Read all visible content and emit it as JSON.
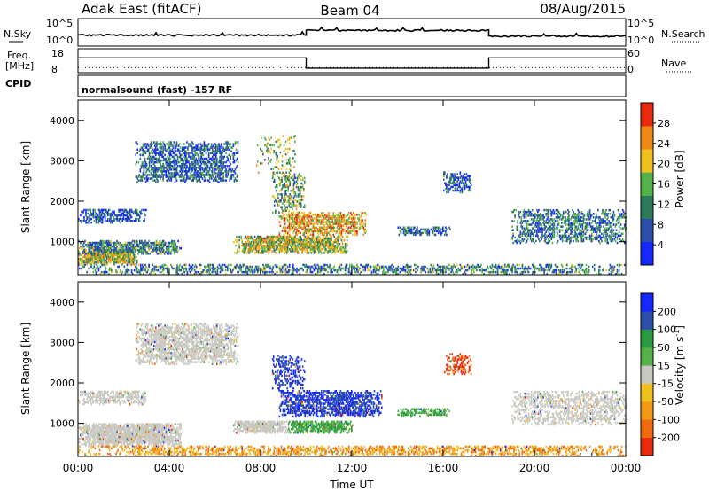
{
  "header": {
    "station": "Adak East (fitACF)",
    "beam": "Beam 04",
    "date": "08/Aug/2015"
  },
  "nsky_panel": {
    "left_label": "N.Sky",
    "right_label": "N.Search",
    "tick_top": "10^5",
    "tick_bottom": "10^0",
    "nsky_levels": [
      {
        "from": 0,
        "to": 10,
        "value": 1.9
      },
      {
        "from": 10,
        "to": 18,
        "value": 2.9
      },
      {
        "from": 18,
        "to": 24,
        "value": 1.7
      }
    ]
  },
  "freq_panel": {
    "label_line1": "Freq.",
    "label_line2": "[MHz]",
    "tick_top": "18",
    "tick_bottom": "8",
    "right_label": "Nave",
    "right_tick_top": "60",
    "right_tick_bottom": "0",
    "freq_levels": [
      {
        "from": 0,
        "to": 10,
        "value": 14.5
      },
      {
        "from": 10,
        "to": 18,
        "value": 9.0
      },
      {
        "from": 18,
        "to": 24,
        "value": 14.5
      }
    ],
    "nave_level": 8
  },
  "cpid_panel": {
    "label": "CPID",
    "mode_text": "normalsound (fast) -157 RF"
  },
  "chart_data": [
    {
      "type": "heatmap",
      "name": "power",
      "xlabel": "",
      "ylabel": "Slant Range [km]",
      "xlim": [
        0,
        24
      ],
      "ylim": [
        180,
        4500
      ],
      "y_ticks": [
        1000,
        2000,
        3000,
        4000
      ],
      "colorbar": {
        "label": "Power [dB]",
        "ticks": [
          "4",
          "8",
          "12",
          "16",
          "20",
          "24",
          "28"
        ],
        "range": [
          0,
          32
        ],
        "colors": [
          "#1428ff",
          "#2c50a8",
          "#2d7a5a",
          "#54b24a",
          "#f0c020",
          "#f08818",
          "#e82a10"
        ]
      },
      "regions": [
        {
          "t0": 0.0,
          "t1": 2.6,
          "r0": 420,
          "r1": 800,
          "level": 0.55,
          "density": 0.85
        },
        {
          "t0": 0.0,
          "t1": 4.5,
          "r0": 680,
          "r1": 1000,
          "level": 0.35,
          "density": 0.7
        },
        {
          "t0": 0.0,
          "t1": 3.0,
          "r0": 1450,
          "r1": 1800,
          "level": 0.2,
          "density": 0.55
        },
        {
          "t0": 2.5,
          "t1": 7.0,
          "r0": 2450,
          "r1": 3450,
          "level": 0.25,
          "density": 0.55
        },
        {
          "t0": 6.8,
          "t1": 11.8,
          "r0": 700,
          "r1": 1150,
          "level": 0.55,
          "density": 0.75
        },
        {
          "t0": 8.8,
          "t1": 12.6,
          "r0": 1150,
          "r1": 1700,
          "level": 0.7,
          "density": 0.6
        },
        {
          "t0": 8.5,
          "t1": 9.9,
          "r0": 1700,
          "r1": 2700,
          "level": 0.45,
          "density": 0.4
        },
        {
          "t0": 7.8,
          "t1": 9.5,
          "r0": 2600,
          "r1": 3600,
          "level": 0.5,
          "density": 0.15
        },
        {
          "t0": 14.0,
          "t1": 16.3,
          "r0": 1150,
          "r1": 1350,
          "level": 0.25,
          "density": 0.6
        },
        {
          "t0": 16.0,
          "t1": 17.2,
          "r0": 2200,
          "r1": 2700,
          "level": 0.2,
          "density": 0.45
        },
        {
          "t0": 19.0,
          "t1": 24.0,
          "r0": 950,
          "r1": 1800,
          "level": 0.3,
          "density": 0.45
        },
        {
          "t0": 0.0,
          "t1": 24.0,
          "r0": 180,
          "r1": 420,
          "level": 0.35,
          "density": 0.4
        }
      ]
    },
    {
      "type": "heatmap",
      "name": "velocity",
      "xlabel": "Time UT",
      "ylabel": "Slant Range [km]",
      "xlim": [
        0,
        24
      ],
      "ylim": [
        180,
        4500
      ],
      "x_ticks": [
        "00:00",
        "04:00",
        "08:00",
        "12:00",
        "16:00",
        "20:00",
        "00:00"
      ],
      "y_ticks": [
        1000,
        2000,
        3000,
        4000
      ],
      "colorbar": {
        "label": "Velocity [m s",
        "label_exponent": "-1",
        "label_close": "]",
        "ticks": [
          "-200",
          "-100",
          "-50",
          "-15",
          "15",
          "50",
          "100",
          "200"
        ],
        "colors": [
          "#e82a10",
          "#f06a10",
          "#f09a18",
          "#f0c020",
          "#c8c8c0",
          "#54b24a",
          "#2a9a40",
          "#2c50a8",
          "#1428ff"
        ]
      },
      "regions": [
        {
          "t0": 0.0,
          "t1": 4.5,
          "r0": 420,
          "r1": 1000,
          "vel": "gray",
          "density": 0.85
        },
        {
          "t0": 0.0,
          "t1": 3.0,
          "r0": 1450,
          "r1": 1800,
          "vel": "gray",
          "density": 0.55
        },
        {
          "t0": 2.5,
          "t1": 7.0,
          "r0": 2450,
          "r1": 3450,
          "vel": "gray",
          "density": 0.6
        },
        {
          "t0": 6.8,
          "t1": 9.2,
          "r0": 750,
          "r1": 1050,
          "vel": "gray",
          "density": 0.8
        },
        {
          "t0": 9.2,
          "t1": 12.0,
          "r0": 750,
          "r1": 1050,
          "vel": "green",
          "density": 0.75
        },
        {
          "t0": 8.8,
          "t1": 13.3,
          "r0": 1150,
          "r1": 1800,
          "vel": "blue",
          "density": 0.65
        },
        {
          "t0": 8.5,
          "t1": 9.9,
          "r0": 1800,
          "r1": 2700,
          "vel": "blue",
          "density": 0.35
        },
        {
          "t0": 14.0,
          "t1": 16.3,
          "r0": 1150,
          "r1": 1350,
          "vel": "green",
          "density": 0.5
        },
        {
          "t0": 16.0,
          "t1": 17.2,
          "r0": 2200,
          "r1": 2700,
          "vel": "red",
          "density": 0.4
        },
        {
          "t0": 19.0,
          "t1": 24.0,
          "r0": 950,
          "r1": 1800,
          "vel": "gray",
          "density": 0.45
        },
        {
          "t0": 0.0,
          "t1": 24.0,
          "r0": 180,
          "r1": 420,
          "vel": "orange",
          "density": 0.45
        }
      ]
    }
  ]
}
